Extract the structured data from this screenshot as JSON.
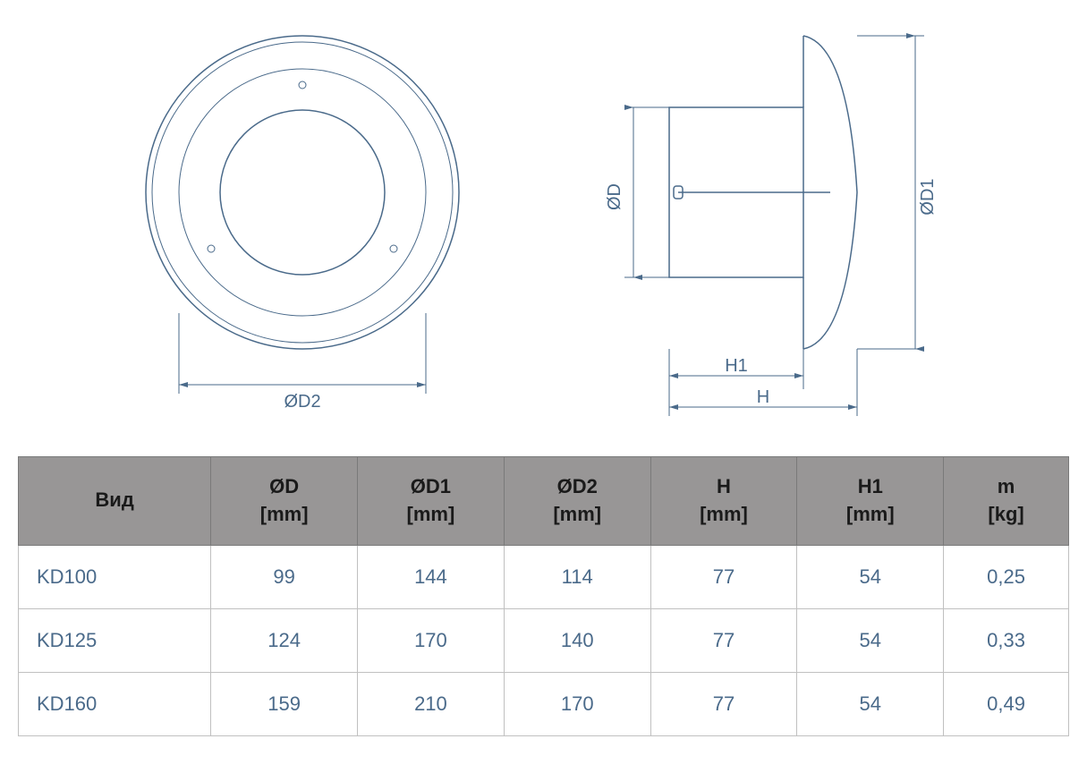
{
  "diagram": {
    "front": {
      "label_d2": "ØD2"
    },
    "side": {
      "label_d": "ØD",
      "label_d1": "ØD1",
      "label_h": "H",
      "label_h1": "H1"
    },
    "colors": {
      "line": "#4a6a8a",
      "text": "#4a6a8a",
      "bg": "#ffffff"
    }
  },
  "table": {
    "columns": [
      {
        "name": "Вид",
        "unit": ""
      },
      {
        "name": "ØD",
        "unit": "[mm]"
      },
      {
        "name": "ØD1",
        "unit": "[mm]"
      },
      {
        "name": "ØD2",
        "unit": "[mm]"
      },
      {
        "name": "H",
        "unit": "[mm]"
      },
      {
        "name": "H1",
        "unit": "[mm]"
      },
      {
        "name": "m",
        "unit": "[kg]"
      }
    ],
    "rows": [
      [
        "KD100",
        "99",
        "144",
        "114",
        "77",
        "54",
        "0,25"
      ],
      [
        "KD125",
        "124",
        "170",
        "140",
        "77",
        "54",
        "0,33"
      ],
      [
        "KD160",
        "159",
        "210",
        "170",
        "77",
        "54",
        "0,49"
      ]
    ],
    "header_bg": "#989696",
    "header_text": "#1a1a1a",
    "cell_text": "#4a6a8a",
    "border": "#c0c0c0"
  }
}
